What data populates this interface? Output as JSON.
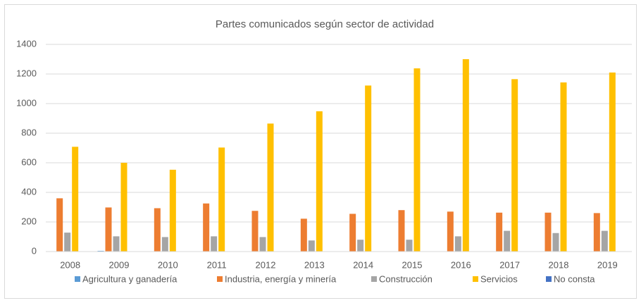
{
  "chart_data": {
    "type": "bar",
    "title": "Partes comunicados según sector de actividad",
    "categories": [
      "2008",
      "2009",
      "2010",
      "2011",
      "2012",
      "2013",
      "2014",
      "2015",
      "2016",
      "2017",
      "2018",
      "2019"
    ],
    "series": [
      {
        "name": "Agricultura y ganadería",
        "color": "#5b9bd5",
        "values": [
          0,
          5,
          0,
          0,
          0,
          0,
          0,
          0,
          0,
          0,
          0,
          0
        ]
      },
      {
        "name": "Industria, energía y minería",
        "color": "#ed7d31",
        "values": [
          360,
          298,
          293,
          325,
          275,
          222,
          255,
          280,
          270,
          263,
          263,
          260
        ]
      },
      {
        "name": "Construcción",
        "color": "#a5a5a5",
        "values": [
          128,
          103,
          98,
          103,
          98,
          75,
          80,
          80,
          103,
          140,
          125,
          140
        ]
      },
      {
        "name": "Servicios",
        "color": "#ffc000",
        "values": [
          708,
          600,
          553,
          703,
          865,
          948,
          1122,
          1238,
          1300,
          1165,
          1143,
          1210
        ]
      },
      {
        "name": "No consta",
        "color": "#4472c4",
        "values": [
          0,
          0,
          0,
          0,
          0,
          0,
          0,
          0,
          0,
          0,
          0,
          0
        ]
      }
    ],
    "ylim": [
      0,
      1400
    ],
    "yticks": [
      0,
      200,
      400,
      600,
      800,
      1000,
      1200,
      1400
    ],
    "grid": true,
    "legend": "bottom"
  }
}
